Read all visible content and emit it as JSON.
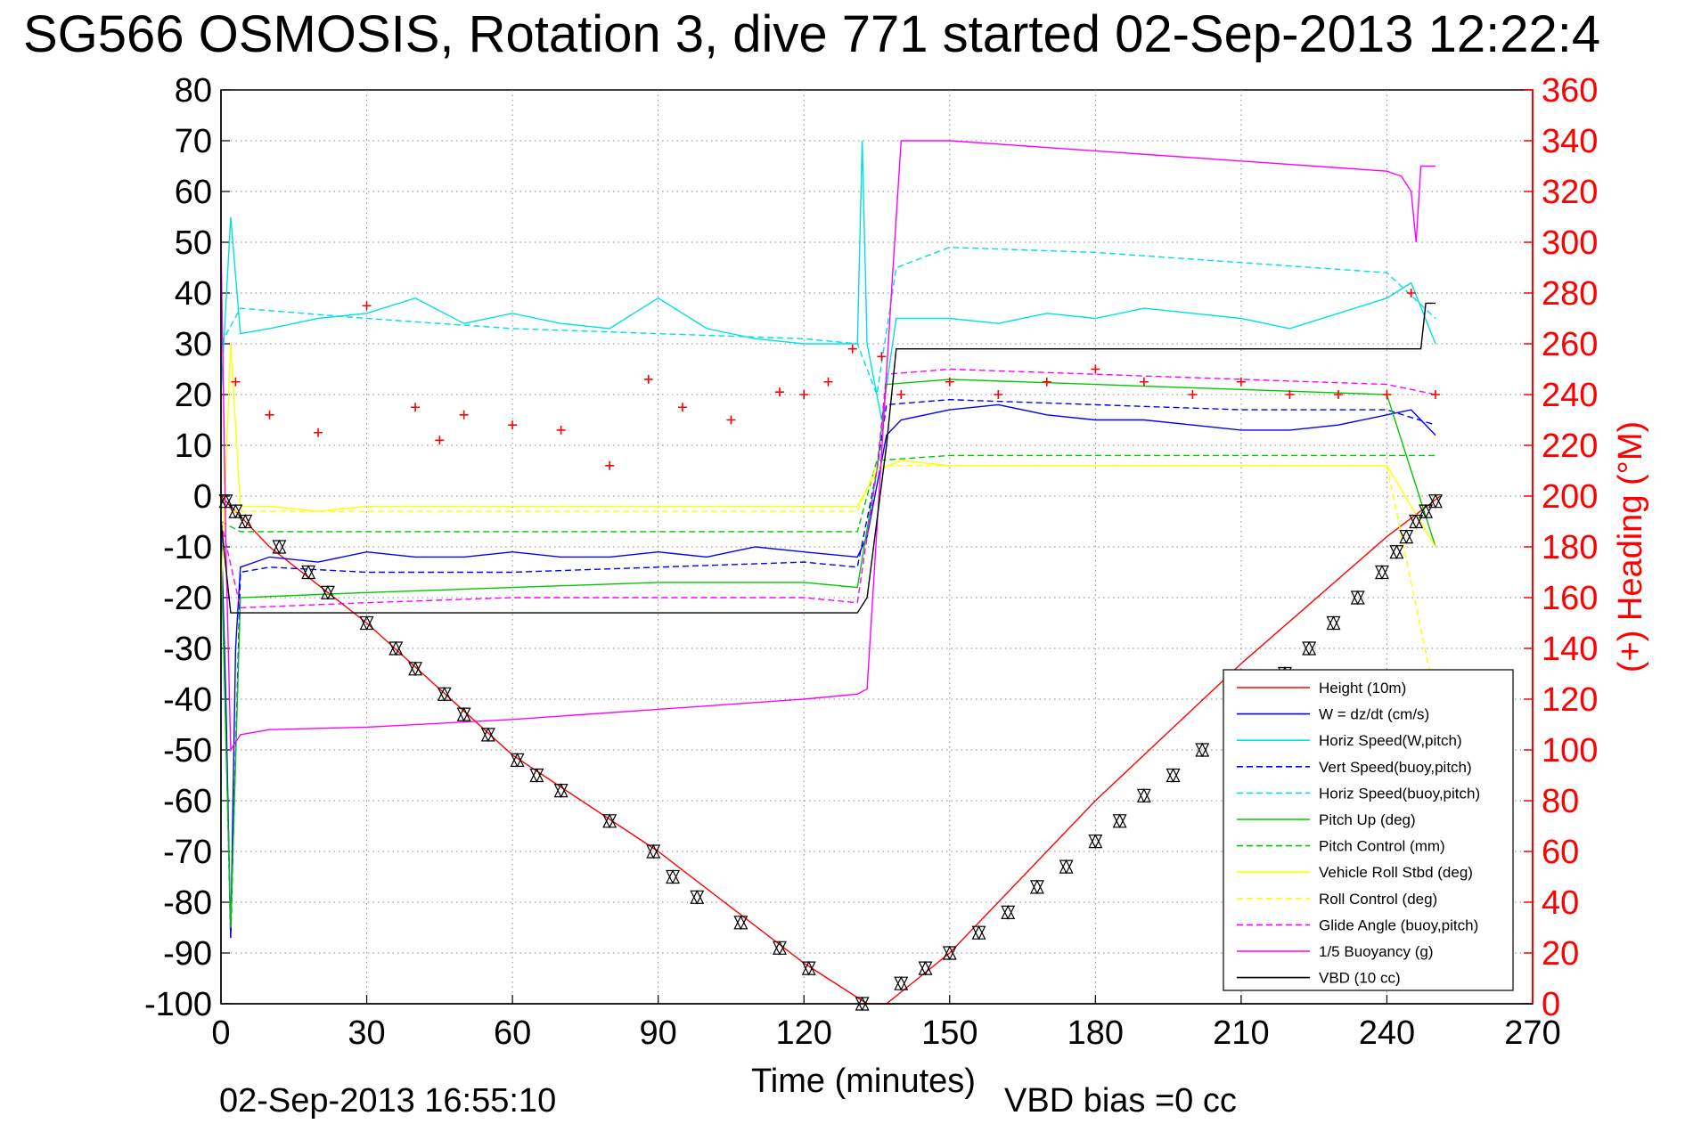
{
  "chart_data": {
    "type": "line",
    "title": "SG566 OSMOSIS, Rotation 3, dive 771 started 02-Sep-2013 12:22:4",
    "xlabel": "Time (minutes)",
    "ylabel_right": "(+) Heading (°M)",
    "footer_left": "02-Sep-2013 16:55:10",
    "footer_right": "VBD bias =0 cc",
    "xlim": [
      0,
      270
    ],
    "ylim": [
      -100,
      80
    ],
    "ylim_right": [
      0,
      360
    ],
    "xticks": [
      "0",
      "30",
      "60",
      "90",
      "120",
      "150",
      "180",
      "210",
      "240",
      "270"
    ],
    "yticks": [
      "80",
      "70",
      "60",
      "50",
      "40",
      "30",
      "20",
      "10",
      "0",
      "-10",
      "-20",
      "-30",
      "-40",
      "-50",
      "-60",
      "-70",
      "-80",
      "-90",
      "-100"
    ],
    "yticks_right": [
      "360",
      "340",
      "320",
      "300",
      "280",
      "260",
      "240",
      "220",
      "200",
      "180",
      "160",
      "140",
      "120",
      "100",
      "80",
      "60",
      "40",
      "20",
      "0"
    ],
    "grid": true,
    "legend_position": "bottom-right",
    "series": [
      {
        "name": "Height (10m)",
        "color": "#ff0000",
        "style": "solid",
        "points": [
          [
            0,
            0
          ],
          [
            2,
            -2
          ],
          [
            10,
            -10
          ],
          [
            30,
            -25
          ],
          [
            60,
            -51
          ],
          [
            90,
            -70
          ],
          [
            120,
            -92
          ],
          [
            133,
            -100
          ],
          [
            137,
            -100
          ],
          [
            150,
            -90
          ],
          [
            180,
            -60
          ],
          [
            210,
            -33
          ],
          [
            240,
            -8
          ],
          [
            251,
            0
          ]
        ]
      },
      {
        "name": "W = dz/dt (cm/s)",
        "color": "#0000ff",
        "style": "solid",
        "points": [
          [
            0,
            -5
          ],
          [
            1,
            -40
          ],
          [
            2,
            -87
          ],
          [
            3,
            -30
          ],
          [
            4,
            -14
          ],
          [
            10,
            -12
          ],
          [
            20,
            -13
          ],
          [
            30,
            -11
          ],
          [
            40,
            -12
          ],
          [
            50,
            -12
          ],
          [
            60,
            -11
          ],
          [
            70,
            -12
          ],
          [
            80,
            -12
          ],
          [
            90,
            -11
          ],
          [
            100,
            -12
          ],
          [
            110,
            -10
          ],
          [
            120,
            -11
          ],
          [
            131,
            -12
          ],
          [
            133,
            -8
          ],
          [
            135,
            2
          ],
          [
            137,
            12
          ],
          [
            140,
            15
          ],
          [
            150,
            17
          ],
          [
            160,
            18
          ],
          [
            170,
            16
          ],
          [
            180,
            15
          ],
          [
            190,
            15
          ],
          [
            200,
            14
          ],
          [
            210,
            13
          ],
          [
            220,
            13
          ],
          [
            230,
            14
          ],
          [
            240,
            16
          ],
          [
            245,
            17
          ],
          [
            250,
            12
          ]
        ]
      },
      {
        "name": "Horiz Speed(W,pitch)",
        "color": "#00e0e0",
        "style": "solid",
        "points": [
          [
            0,
            20
          ],
          [
            2,
            55
          ],
          [
            4,
            32
          ],
          [
            10,
            33
          ],
          [
            20,
            35
          ],
          [
            30,
            36
          ],
          [
            40,
            39
          ],
          [
            50,
            34
          ],
          [
            60,
            36
          ],
          [
            70,
            34
          ],
          [
            80,
            33
          ],
          [
            90,
            39
          ],
          [
            100,
            33
          ],
          [
            110,
            31
          ],
          [
            120,
            30
          ],
          [
            131,
            30
          ],
          [
            132,
            70
          ],
          [
            133,
            30
          ],
          [
            136,
            15
          ],
          [
            139,
            35
          ],
          [
            150,
            35
          ],
          [
            160,
            34
          ],
          [
            170,
            36
          ],
          [
            180,
            35
          ],
          [
            190,
            37
          ],
          [
            200,
            36
          ],
          [
            210,
            35
          ],
          [
            220,
            33
          ],
          [
            230,
            36
          ],
          [
            240,
            39
          ],
          [
            245,
            42
          ],
          [
            250,
            30
          ]
        ]
      },
      {
        "name": "Vert Speed(buoy,pitch)",
        "color": "#0000ff",
        "style": "dashed",
        "points": [
          [
            0,
            -5
          ],
          [
            2,
            -87
          ],
          [
            4,
            -15
          ],
          [
            10,
            -14
          ],
          [
            30,
            -15
          ],
          [
            60,
            -15
          ],
          [
            90,
            -14
          ],
          [
            120,
            -13
          ],
          [
            131,
            -14
          ],
          [
            135,
            5
          ],
          [
            137,
            18
          ],
          [
            150,
            19
          ],
          [
            180,
            18
          ],
          [
            210,
            17
          ],
          [
            240,
            17
          ],
          [
            250,
            14
          ]
        ]
      },
      {
        "name": "Horiz Speed(buoy,pitch)",
        "color": "#00e0e0",
        "style": "dashed",
        "points": [
          [
            0,
            30
          ],
          [
            4,
            37
          ],
          [
            30,
            35
          ],
          [
            60,
            33
          ],
          [
            90,
            32
          ],
          [
            120,
            31
          ],
          [
            131,
            30
          ],
          [
            135,
            20
          ],
          [
            139,
            45
          ],
          [
            150,
            49
          ],
          [
            180,
            48
          ],
          [
            210,
            46
          ],
          [
            240,
            44
          ],
          [
            250,
            35
          ]
        ]
      },
      {
        "name": "Pitch Up (deg)",
        "color": "#00c800",
        "style": "solid",
        "points": [
          [
            0,
            -10
          ],
          [
            2,
            -85
          ],
          [
            4,
            -20
          ],
          [
            30,
            -19
          ],
          [
            60,
            -18
          ],
          [
            90,
            -17
          ],
          [
            120,
            -17
          ],
          [
            131,
            -18
          ],
          [
            135,
            5
          ],
          [
            137,
            22
          ],
          [
            150,
            23
          ],
          [
            180,
            22
          ],
          [
            210,
            21
          ],
          [
            240,
            20
          ],
          [
            250,
            -10
          ]
        ]
      },
      {
        "name": "Pitch Control (mm)",
        "color": "#00c800",
        "style": "dashed",
        "points": [
          [
            0,
            -5
          ],
          [
            4,
            -7
          ],
          [
            30,
            -7
          ],
          [
            60,
            -7
          ],
          [
            90,
            -7
          ],
          [
            120,
            -7
          ],
          [
            131,
            -7
          ],
          [
            135,
            7
          ],
          [
            150,
            8
          ],
          [
            180,
            8
          ],
          [
            210,
            8
          ],
          [
            240,
            8
          ],
          [
            250,
            8
          ]
        ]
      },
      {
        "name": "Vehicle Roll Stbd (deg)",
        "color": "#ffff00",
        "style": "solid",
        "points": [
          [
            0,
            -20
          ],
          [
            2,
            30
          ],
          [
            4,
            -2
          ],
          [
            10,
            -2
          ],
          [
            20,
            -3
          ],
          [
            30,
            -2
          ],
          [
            60,
            -2
          ],
          [
            90,
            -2
          ],
          [
            120,
            -2
          ],
          [
            131,
            -2
          ],
          [
            135,
            5
          ],
          [
            140,
            7
          ],
          [
            150,
            6
          ],
          [
            180,
            6
          ],
          [
            210,
            6
          ],
          [
            240,
            6
          ],
          [
            250,
            -10
          ]
        ]
      },
      {
        "name": "Roll Control (deg)",
        "color": "#ffff00",
        "style": "dashed",
        "points": [
          [
            0,
            -3
          ],
          [
            4,
            -3
          ],
          [
            30,
            -3
          ],
          [
            60,
            -3
          ],
          [
            90,
            -3
          ],
          [
            120,
            -3
          ],
          [
            131,
            -3
          ],
          [
            135,
            6
          ],
          [
            150,
            6
          ],
          [
            180,
            6
          ],
          [
            210,
            6
          ],
          [
            240,
            6
          ],
          [
            250,
            -40
          ]
        ]
      },
      {
        "name": "Glide Angle (buoy,pitch)",
        "color": "#ff00ff",
        "style": "dashed",
        "points": [
          [
            0,
            -5
          ],
          [
            4,
            -22
          ],
          [
            30,
            -21
          ],
          [
            60,
            -20
          ],
          [
            90,
            -20
          ],
          [
            120,
            -20
          ],
          [
            131,
            -21
          ],
          [
            135,
            5
          ],
          [
            137,
            24
          ],
          [
            150,
            25
          ],
          [
            180,
            24
          ],
          [
            210,
            23
          ],
          [
            240,
            22
          ],
          [
            250,
            20
          ]
        ]
      },
      {
        "name": "1/5 Buoyancy (g)",
        "color": "#ff00ff",
        "style": "solid",
        "points": [
          [
            0,
            50
          ],
          [
            1,
            -10
          ],
          [
            2,
            -50
          ],
          [
            4,
            -47
          ],
          [
            10,
            -46
          ],
          [
            30,
            -45.5
          ],
          [
            60,
            -44
          ],
          [
            90,
            -42
          ],
          [
            120,
            -40
          ],
          [
            131,
            -39
          ],
          [
            133,
            -38
          ],
          [
            138,
            40
          ],
          [
            140,
            70
          ],
          [
            150,
            70
          ],
          [
            180,
            68
          ],
          [
            210,
            66
          ],
          [
            240,
            64
          ],
          [
            243,
            63
          ],
          [
            245,
            60
          ],
          [
            246,
            50
          ],
          [
            247,
            65
          ],
          [
            250,
            65
          ]
        ]
      },
      {
        "name": "VBD (10 cc)",
        "color": "#000000",
        "style": "solid",
        "points": [
          [
            0,
            -5
          ],
          [
            2,
            -23
          ],
          [
            30,
            -23
          ],
          [
            60,
            -23
          ],
          [
            90,
            -23
          ],
          [
            120,
            -23
          ],
          [
            131,
            -23
          ],
          [
            133,
            -20
          ],
          [
            137,
            10
          ],
          [
            139,
            29
          ],
          [
            150,
            29
          ],
          [
            180,
            29
          ],
          [
            210,
            29
          ],
          [
            240,
            29
          ],
          [
            247,
            29
          ],
          [
            248,
            38
          ],
          [
            250,
            38
          ]
        ]
      }
    ],
    "heading_points": {
      "name": "(+) Heading",
      "color": "#ff0000",
      "marker": "+",
      "axis": "right",
      "values": [
        [
          3,
          245
        ],
        [
          10,
          232
        ],
        [
          20,
          225
        ],
        [
          30,
          275
        ],
        [
          40,
          235
        ],
        [
          45,
          222
        ],
        [
          50,
          232
        ],
        [
          60,
          228
        ],
        [
          70,
          226
        ],
        [
          80,
          212
        ],
        [
          88,
          246
        ],
        [
          95,
          235
        ],
        [
          105,
          230
        ],
        [
          115,
          241
        ],
        [
          120,
          240
        ],
        [
          125,
          245
        ],
        [
          130,
          258
        ],
        [
          136,
          255
        ],
        [
          140,
          240
        ],
        [
          150,
          245
        ],
        [
          160,
          240
        ],
        [
          170,
          245
        ],
        [
          180,
          250
        ],
        [
          190,
          245
        ],
        [
          200,
          240
        ],
        [
          210,
          245
        ],
        [
          220,
          240
        ],
        [
          230,
          240
        ],
        [
          240,
          240
        ],
        [
          245,
          280
        ],
        [
          250,
          240
        ]
      ]
    },
    "depth_markers": {
      "color": "#000000",
      "marker": "triangle-pair",
      "values": [
        [
          1,
          -1
        ],
        [
          3,
          -3
        ],
        [
          5,
          -5
        ],
        [
          12,
          -10
        ],
        [
          18,
          -15
        ],
        [
          22,
          -19
        ],
        [
          30,
          -25
        ],
        [
          36,
          -30
        ],
        [
          40,
          -34
        ],
        [
          46,
          -39
        ],
        [
          50,
          -43
        ],
        [
          55,
          -47
        ],
        [
          61,
          -52
        ],
        [
          65,
          -55
        ],
        [
          70,
          -58
        ],
        [
          80,
          -64
        ],
        [
          89,
          -70
        ],
        [
          93,
          -75
        ],
        [
          98,
          -79
        ],
        [
          107,
          -84
        ],
        [
          115,
          -89
        ],
        [
          121,
          -93
        ],
        [
          132,
          -100
        ],
        [
          140,
          -96
        ],
        [
          145,
          -93
        ],
        [
          150,
          -90
        ],
        [
          156,
          -86
        ],
        [
          162,
          -82
        ],
        [
          168,
          -77
        ],
        [
          174,
          -73
        ],
        [
          180,
          -68
        ],
        [
          185,
          -64
        ],
        [
          190,
          -59
        ],
        [
          196,
          -55
        ],
        [
          202,
          -50
        ],
        [
          208,
          -45
        ],
        [
          214,
          -40
        ],
        [
          219,
          -35
        ],
        [
          224,
          -30
        ],
        [
          229,
          -25
        ],
        [
          234,
          -20
        ],
        [
          239,
          -15
        ],
        [
          242,
          -11
        ],
        [
          244,
          -8
        ],
        [
          246,
          -5
        ],
        [
          248,
          -3
        ],
        [
          250,
          -1
        ]
      ]
    }
  }
}
